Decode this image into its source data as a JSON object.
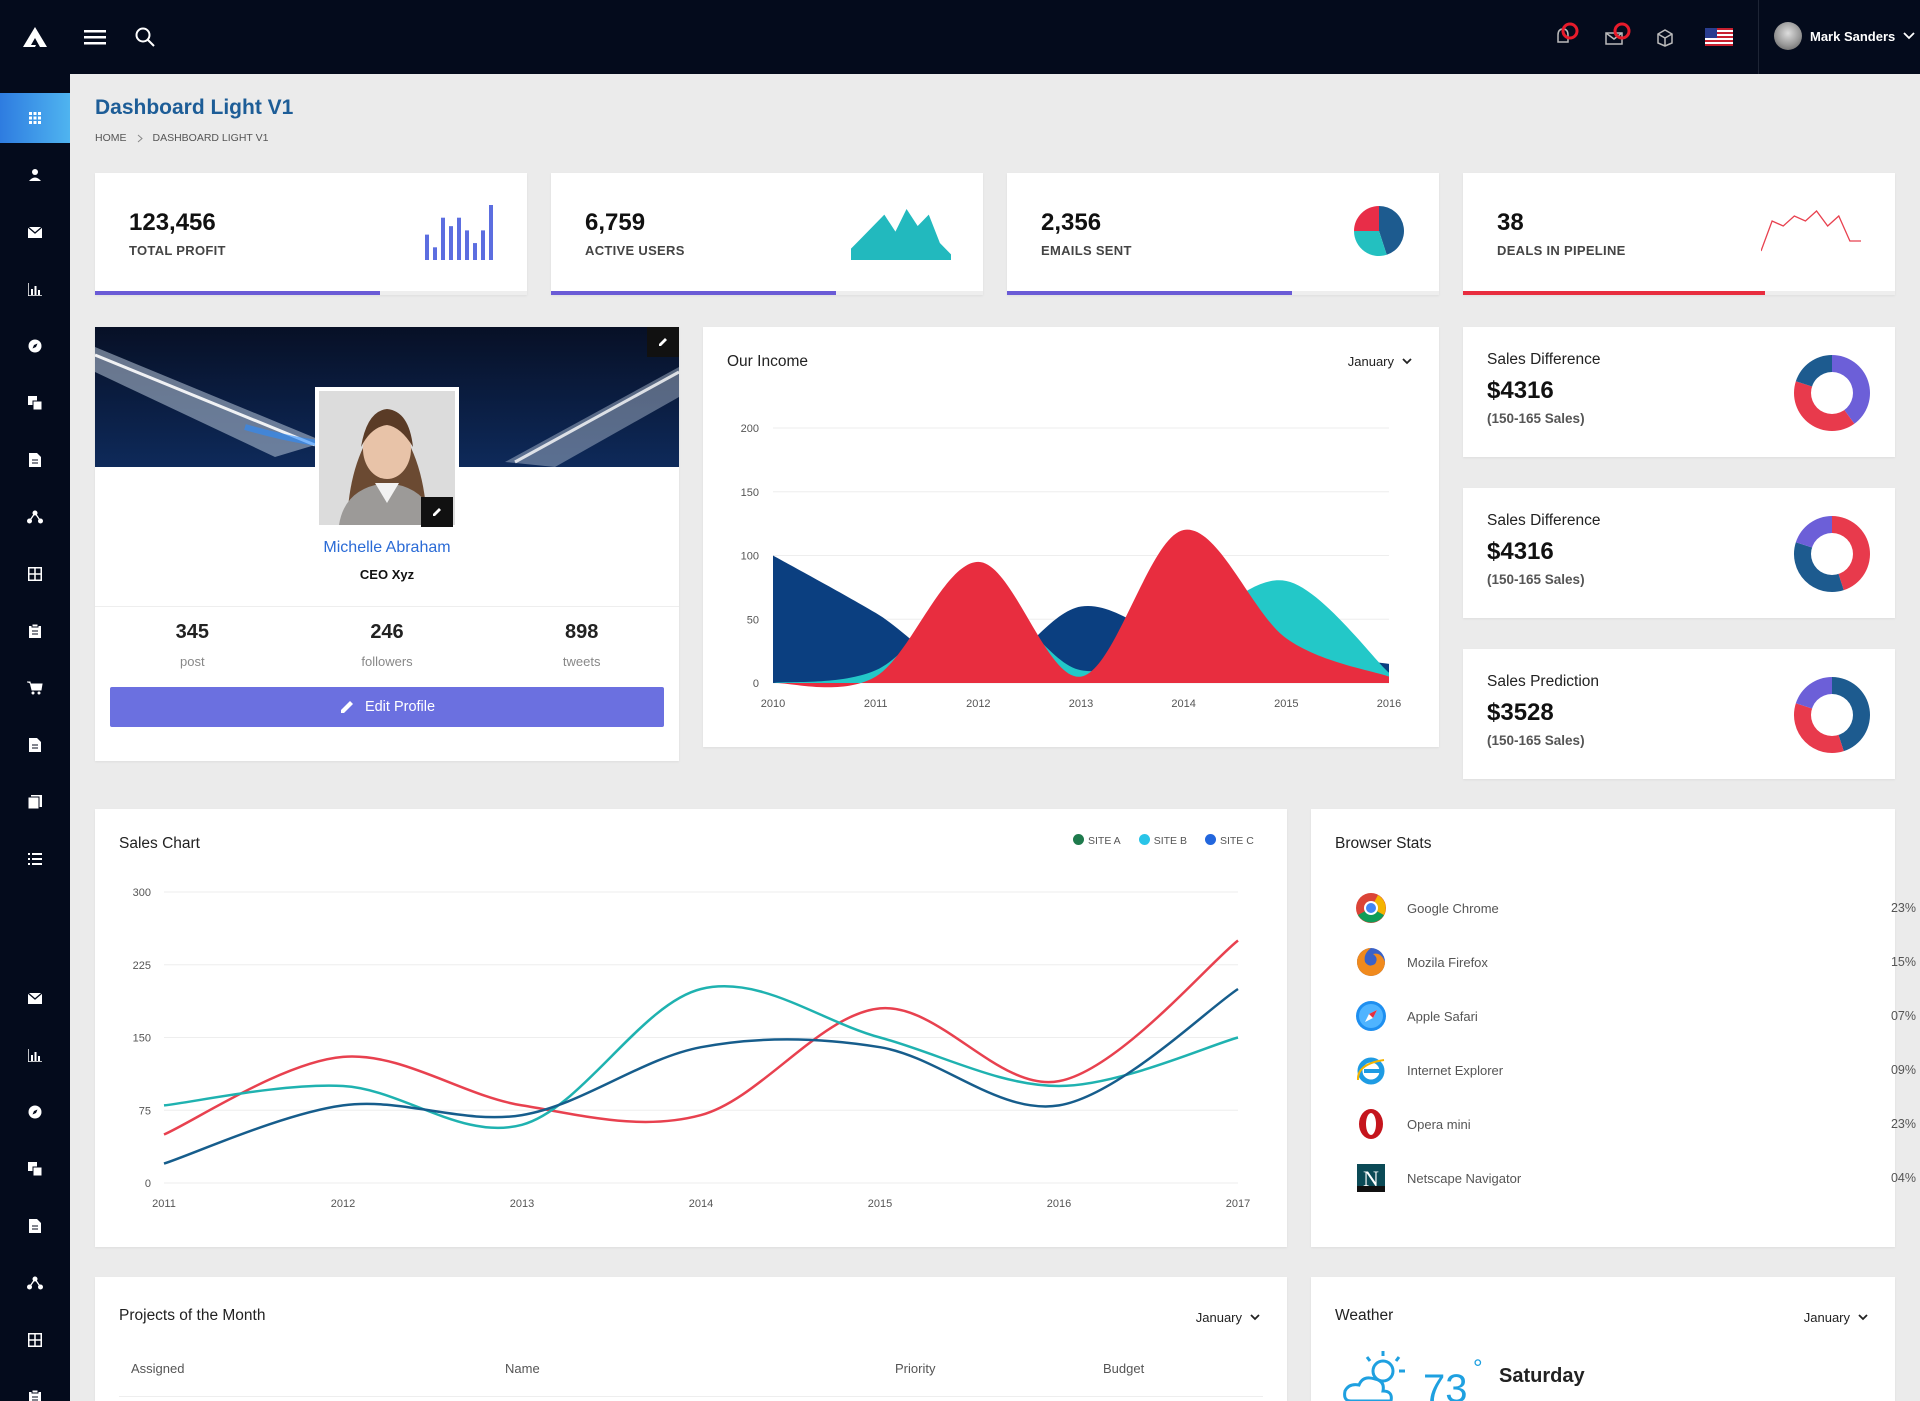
{
  "topbar": {
    "user_name": "Mark Sanders",
    "notification_icon": "bell-icon",
    "message_icon": "envelope-icon",
    "box_icon": "box-icon",
    "flag_icon": "us-flag-icon"
  },
  "sidebar": {
    "items_top": [
      "dashboard-icon",
      "user-icon",
      "envelope-icon",
      "bar-chart-icon",
      "compass-icon",
      "copy-icon",
      "file-icon",
      "sitemap-icon",
      "grid-icon",
      "clipboard-icon",
      "cart-icon",
      "document-icon",
      "pages-icon",
      "list-icon"
    ],
    "items_bottom": [
      "envelope-icon",
      "bar-chart-icon",
      "compass-icon",
      "copy-icon",
      "file-icon",
      "sitemap-icon",
      "grid-icon",
      "clipboard-icon"
    ]
  },
  "page": {
    "title": "Dashboard Light V1",
    "breadcrumb": [
      "HOME",
      "DASHBOARD LIGHT V1"
    ]
  },
  "stats": [
    {
      "value": "123,456",
      "label": "TOTAL PROFIT",
      "progress": 0.66,
      "color": "#6a5bd6"
    },
    {
      "value": "6,759",
      "label": "ACTIVE USERS",
      "progress": 0.66,
      "color": "#6a5bd6"
    },
    {
      "value": "2,356",
      "label": "EMAILS SENT",
      "progress": 0.66,
      "color": "#6a5bd6"
    },
    {
      "value": "38",
      "label": "DEALS IN PIPELINE",
      "progress": 0.7,
      "color": "#e82d3f"
    }
  ],
  "profile": {
    "name": "Michelle Abraham",
    "role": "CEO Xyz",
    "counts": [
      {
        "value": "345",
        "label": "post"
      },
      {
        "value": "246",
        "label": "followers"
      },
      {
        "value": "898",
        "label": "tweets"
      }
    ],
    "edit_label": "Edit Profile"
  },
  "income": {
    "title": "Our Income",
    "filter": "January"
  },
  "sales_cards": [
    {
      "title": "Sales Difference",
      "value": "$4316",
      "sub": "(150-165 Sales)"
    },
    {
      "title": "Sales Difference",
      "value": "$4316",
      "sub": "(150-165 Sales)"
    },
    {
      "title": "Sales Prediction",
      "value": "$3528",
      "sub": "(150-165 Sales)"
    }
  ],
  "sales_chart": {
    "title": "Sales Chart",
    "legend": [
      {
        "name": "SITE A",
        "color": "#1e7a4c"
      },
      {
        "name": "SITE B",
        "color": "#29c4e8"
      },
      {
        "name": "SITE C",
        "color": "#2266dd"
      }
    ]
  },
  "browser_stats": {
    "title": "Browser Stats",
    "rows": [
      {
        "name": "Google Chrome",
        "pct": "23%",
        "icon": "chrome-icon"
      },
      {
        "name": "Mozila Firefox",
        "pct": "15%",
        "icon": "firefox-icon"
      },
      {
        "name": "Apple Safari",
        "pct": "07%",
        "icon": "safari-icon"
      },
      {
        "name": "Internet Explorer",
        "pct": "09%",
        "icon": "ie-icon"
      },
      {
        "name": "Opera mini",
        "pct": "23%",
        "icon": "opera-icon"
      },
      {
        "name": "Netscape Navigator",
        "pct": "04%",
        "icon": "netscape-icon"
      }
    ]
  },
  "projects": {
    "title": "Projects of the Month",
    "filter": "January",
    "columns": [
      "Assigned",
      "Name",
      "Priority",
      "Budget"
    ]
  },
  "weather": {
    "title": "Weather",
    "filter": "January",
    "temp": "73",
    "degree": "°",
    "day": "Saturday"
  },
  "chart_data": [
    {
      "type": "area",
      "title": "Our Income",
      "x": [
        2010,
        2011,
        2012,
        2013,
        2014,
        2015,
        2016
      ],
      "ylim": [
        0,
        200
      ],
      "yticks": [
        0,
        50,
        100,
        150,
        200
      ],
      "series": [
        {
          "color": "#0b3f80",
          "values": [
            100,
            55,
            5,
            60,
            30,
            25,
            15
          ]
        },
        {
          "color": "#23c8c8",
          "values": [
            0,
            10,
            70,
            10,
            40,
            80,
            8
          ]
        },
        {
          "color": "#e82d3f",
          "values": [
            0,
            5,
            95,
            5,
            120,
            35,
            5
          ]
        }
      ]
    },
    {
      "type": "line",
      "title": "Sales Chart",
      "x": [
        2011,
        2012,
        2013,
        2014,
        2015,
        2016,
        2017
      ],
      "ylim": [
        0,
        300
      ],
      "yticks": [
        0,
        75,
        150,
        225,
        300
      ],
      "series": [
        {
          "name": "SITE A",
          "color": "#e8414f",
          "values": [
            50,
            130,
            80,
            70,
            180,
            105,
            250
          ]
        },
        {
          "name": "SITE B",
          "color": "#1fb2b0",
          "values": [
            80,
            100,
            60,
            200,
            150,
            100,
            150
          ]
        },
        {
          "name": "SITE C",
          "color": "#165d8c",
          "values": [
            20,
            80,
            70,
            140,
            140,
            80,
            200
          ]
        }
      ]
    },
    {
      "type": "pie",
      "slices": [
        {
          "value": 45,
          "color": "#1d5b8f"
        },
        {
          "value": 30,
          "color": "#23c0c0"
        },
        {
          "value": 25,
          "color": "#e82d48"
        }
      ]
    },
    {
      "type": "pie",
      "slices": [
        {
          "value": 40,
          "color": "#6c5fd8"
        },
        {
          "value": 40,
          "color": "#e83a4c"
        },
        {
          "value": 20,
          "color": "#1d5b8f"
        }
      ]
    },
    {
      "type": "pie",
      "slices": [
        {
          "value": 45,
          "color": "#e83a4c"
        },
        {
          "value": 35,
          "color": "#1d5b8f"
        },
        {
          "value": 20,
          "color": "#6c5fd8"
        }
      ]
    },
    {
      "type": "pie",
      "slices": [
        {
          "value": 45,
          "color": "#1d5b8f"
        },
        {
          "value": 35,
          "color": "#e83a4c"
        },
        {
          "value": 20,
          "color": "#6c5fd8"
        }
      ]
    },
    {
      "type": "bar",
      "values": [
        6,
        3,
        10,
        8,
        10,
        7,
        4,
        7,
        13
      ],
      "color": "#5c6ee0"
    },
    {
      "type": "area",
      "values": [
        2,
        4,
        6,
        8,
        5,
        9,
        6,
        8,
        3,
        1
      ],
      "color": "#22b9be"
    },
    {
      "type": "line",
      "values": [
        1,
        7,
        6,
        8,
        7,
        9,
        6,
        8,
        3,
        3
      ],
      "color": "#e8414f"
    }
  ]
}
